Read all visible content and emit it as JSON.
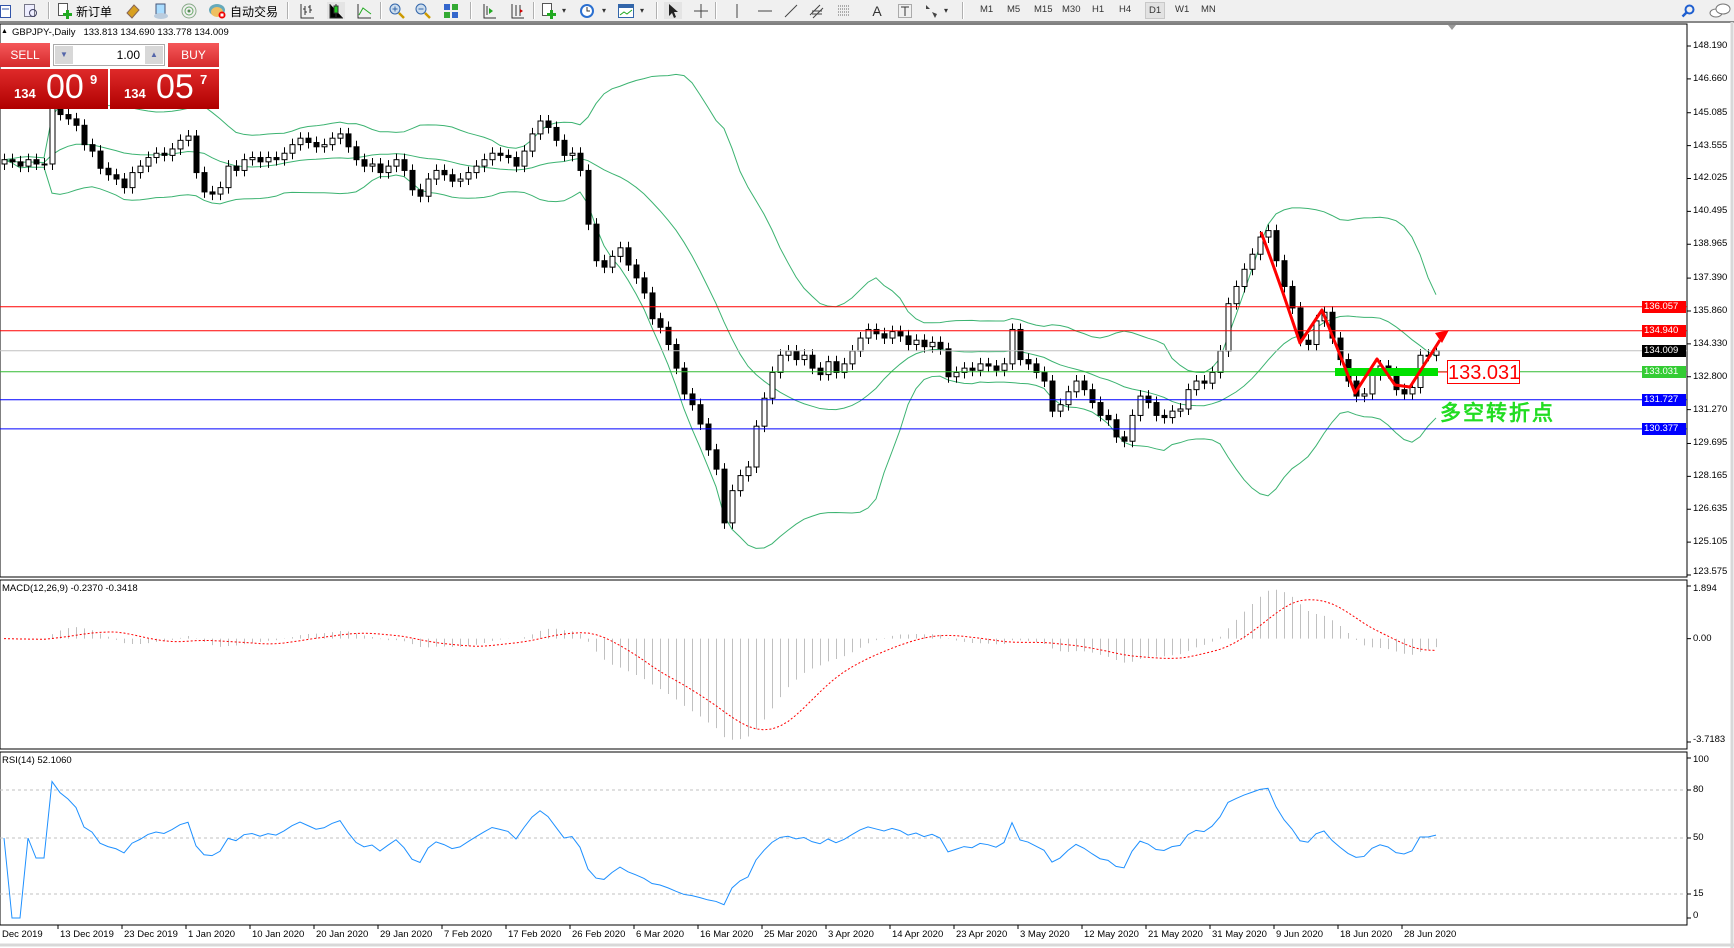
{
  "toolbar": {
    "new_order": "新订单",
    "auto_trading": "自动交易",
    "periods": [
      "M1",
      "M5",
      "M15",
      "M30",
      "H1",
      "H4",
      "D1",
      "W1",
      "MN"
    ],
    "active_period": "D1",
    "icons": [
      "new-chart",
      "profiles",
      "new-order",
      "meta-editor",
      "market-watch",
      "signals",
      "auto-trading",
      "bar-chart",
      "candlesticks",
      "line-chart",
      "zoom-in",
      "zoom-out",
      "tile-windows",
      "auto-scroll",
      "chart-shift",
      "indicators",
      "periodicity",
      "templates",
      "cursor",
      "crosshair",
      "vertical-line",
      "horizontal-line",
      "trendline",
      "equidistant-channel",
      "fibonacci-retracement",
      "text",
      "text-label",
      "arrows",
      "search",
      "chat"
    ]
  },
  "chart_header": {
    "symbol": "GBPJPY-,Daily",
    "ohlc": "133.813 134.690 133.778 134.009"
  },
  "trade_panel": {
    "sell_label": "SELL",
    "buy_label": "BUY",
    "lot": "1.00",
    "sell_price": {
      "prefix": "134",
      "main": "00",
      "pip": "9"
    },
    "buy_price": {
      "prefix": "134",
      "main": "05",
      "pip": "7"
    }
  },
  "price_axis": {
    "ticks": [
      "148.190",
      "146.660",
      "145.085",
      "143.555",
      "142.025",
      "140.495",
      "138.965",
      "137.390",
      "135.860",
      "134.330",
      "132.800",
      "131.270",
      "129.695",
      "128.165",
      "126.635",
      "125.105",
      "123.575"
    ]
  },
  "levels": [
    {
      "price": "136.057",
      "color": "#ff0000",
      "label_bg": "#ff0000"
    },
    {
      "price": "134.940",
      "color": "#ff0000",
      "label_bg": "#ff0000"
    },
    {
      "price": "134.009",
      "color": "#c0c0c0",
      "label_bg": "#000000"
    },
    {
      "price": "133.031",
      "color": "#33bb33",
      "label_bg": "#33cc33"
    },
    {
      "price": "131.727",
      "color": "#0000ff",
      "label_bg": "#0000ff"
    },
    {
      "price": "130.377",
      "color": "#0000ff",
      "label_bg": "#0000ff"
    }
  ],
  "annotations": {
    "level_label": "133.031",
    "turning_point": "多空转折点",
    "zigzag_color": "#ff0000",
    "highlight_color": "#00e000"
  },
  "macd": {
    "label": "MACD(12,26,9) -0.2370 -0.3418",
    "ticks": [
      "1.894",
      "0.00",
      "-3.7183"
    ]
  },
  "rsi": {
    "label": "RSI(14) 52.1060",
    "ticks": [
      "100",
      "80",
      "50",
      "15",
      "0"
    ]
  },
  "time_axis": {
    "labels": [
      "Dec 2019",
      "13 Dec 2019",
      "23 Dec 2019",
      "1 Jan 2020",
      "10 Jan 2020",
      "20 Jan 2020",
      "29 Jan 2020",
      "7 Feb 2020",
      "17 Feb 2020",
      "26 Feb 2020",
      "6 Mar 2020",
      "16 Mar 2020",
      "25 Mar 2020",
      "3 Apr 2020",
      "14 Apr 2020",
      "23 Apr 2020",
      "3 May 2020",
      "12 May 2020",
      "21 May 2020",
      "31 May 2020",
      "9 Jun 2020",
      "18 Jun 2020",
      "28 Jun 2020"
    ]
  },
  "chart_data": {
    "type": "candlestick",
    "symbol": "GBPJPY-",
    "timeframe": "Daily",
    "ylim": [
      123.575,
      148.19
    ],
    "indicators": [
      "Bollinger Bands",
      "MACD(12,26,9)",
      "RSI(14)"
    ],
    "colors": {
      "bands": "#3cb371",
      "macd_hist": "#c0c0c0",
      "macd_signal": "#ff0000",
      "rsi": "#1e90ff"
    },
    "macd_range": [
      -3.7183,
      1.894
    ],
    "rsi_levels": [
      80,
      50,
      15
    ],
    "first_open": 142.7,
    "close": [
      142.9,
      142.8,
      142.6,
      142.9,
      142.7,
      142.7,
      145.3,
      145.0,
      144.8,
      144.5,
      143.6,
      143.3,
      142.5,
      142.2,
      142.0,
      141.6,
      142.3,
      142.6,
      143.0,
      143.2,
      143.1,
      143.4,
      143.8,
      144.0,
      142.3,
      141.4,
      141.3,
      141.6,
      142.6,
      142.4,
      142.9,
      143.0,
      142.8,
      143.0,
      142.9,
      143.2,
      143.6,
      143.9,
      143.7,
      143.5,
      143.6,
      143.9,
      144.1,
      143.5,
      142.9,
      142.6,
      142.7,
      142.3,
      142.6,
      142.9,
      142.4,
      141.5,
      141.2,
      142.0,
      142.4,
      142.2,
      141.9,
      142.0,
      142.3,
      142.6,
      142.9,
      143.2,
      143.1,
      143.0,
      142.6,
      143.3,
      144.1,
      144.7,
      144.4,
      143.8,
      143.1,
      143.2,
      142.4,
      139.9,
      138.2,
      137.9,
      138.4,
      138.8,
      138.0,
      137.4,
      136.7,
      135.5,
      135.1,
      134.3,
      133.2,
      132.0,
      131.5,
      130.6,
      129.4,
      128.5,
      126.0,
      127.5,
      128.2,
      128.6,
      130.5,
      131.8,
      133.0,
      133.8,
      134.0,
      133.6,
      133.8,
      133.2,
      132.9,
      133.5,
      133.0,
      133.4,
      134.0,
      134.6,
      135.0,
      134.8,
      134.6,
      134.9,
      134.7,
      134.3,
      134.5,
      134.2,
      134.4,
      134.1,
      132.8,
      133.0,
      133.2,
      133.1,
      133.4,
      133.3,
      133.1,
      133.4,
      135.0,
      133.6,
      133.4,
      133.0,
      132.6,
      131.2,
      131.5,
      132.1,
      132.6,
      132.2,
      131.6,
      131.0,
      130.8,
      130.0,
      129.8,
      131.0,
      131.9,
      131.6,
      131.0,
      130.9,
      131.2,
      131.3,
      132.2,
      132.6,
      132.5,
      133.0,
      134.0,
      136.2,
      137.0,
      137.8,
      138.5,
      139.3,
      139.6,
      138.2,
      137.0,
      136.0,
      134.5,
      134.3,
      135.4,
      135.8,
      134.6,
      133.6,
      132.6,
      131.9,
      132.0,
      132.9,
      133.3,
      133.0,
      132.2,
      132.0,
      132.3,
      133.8,
      133.8,
      134.009
    ]
  }
}
